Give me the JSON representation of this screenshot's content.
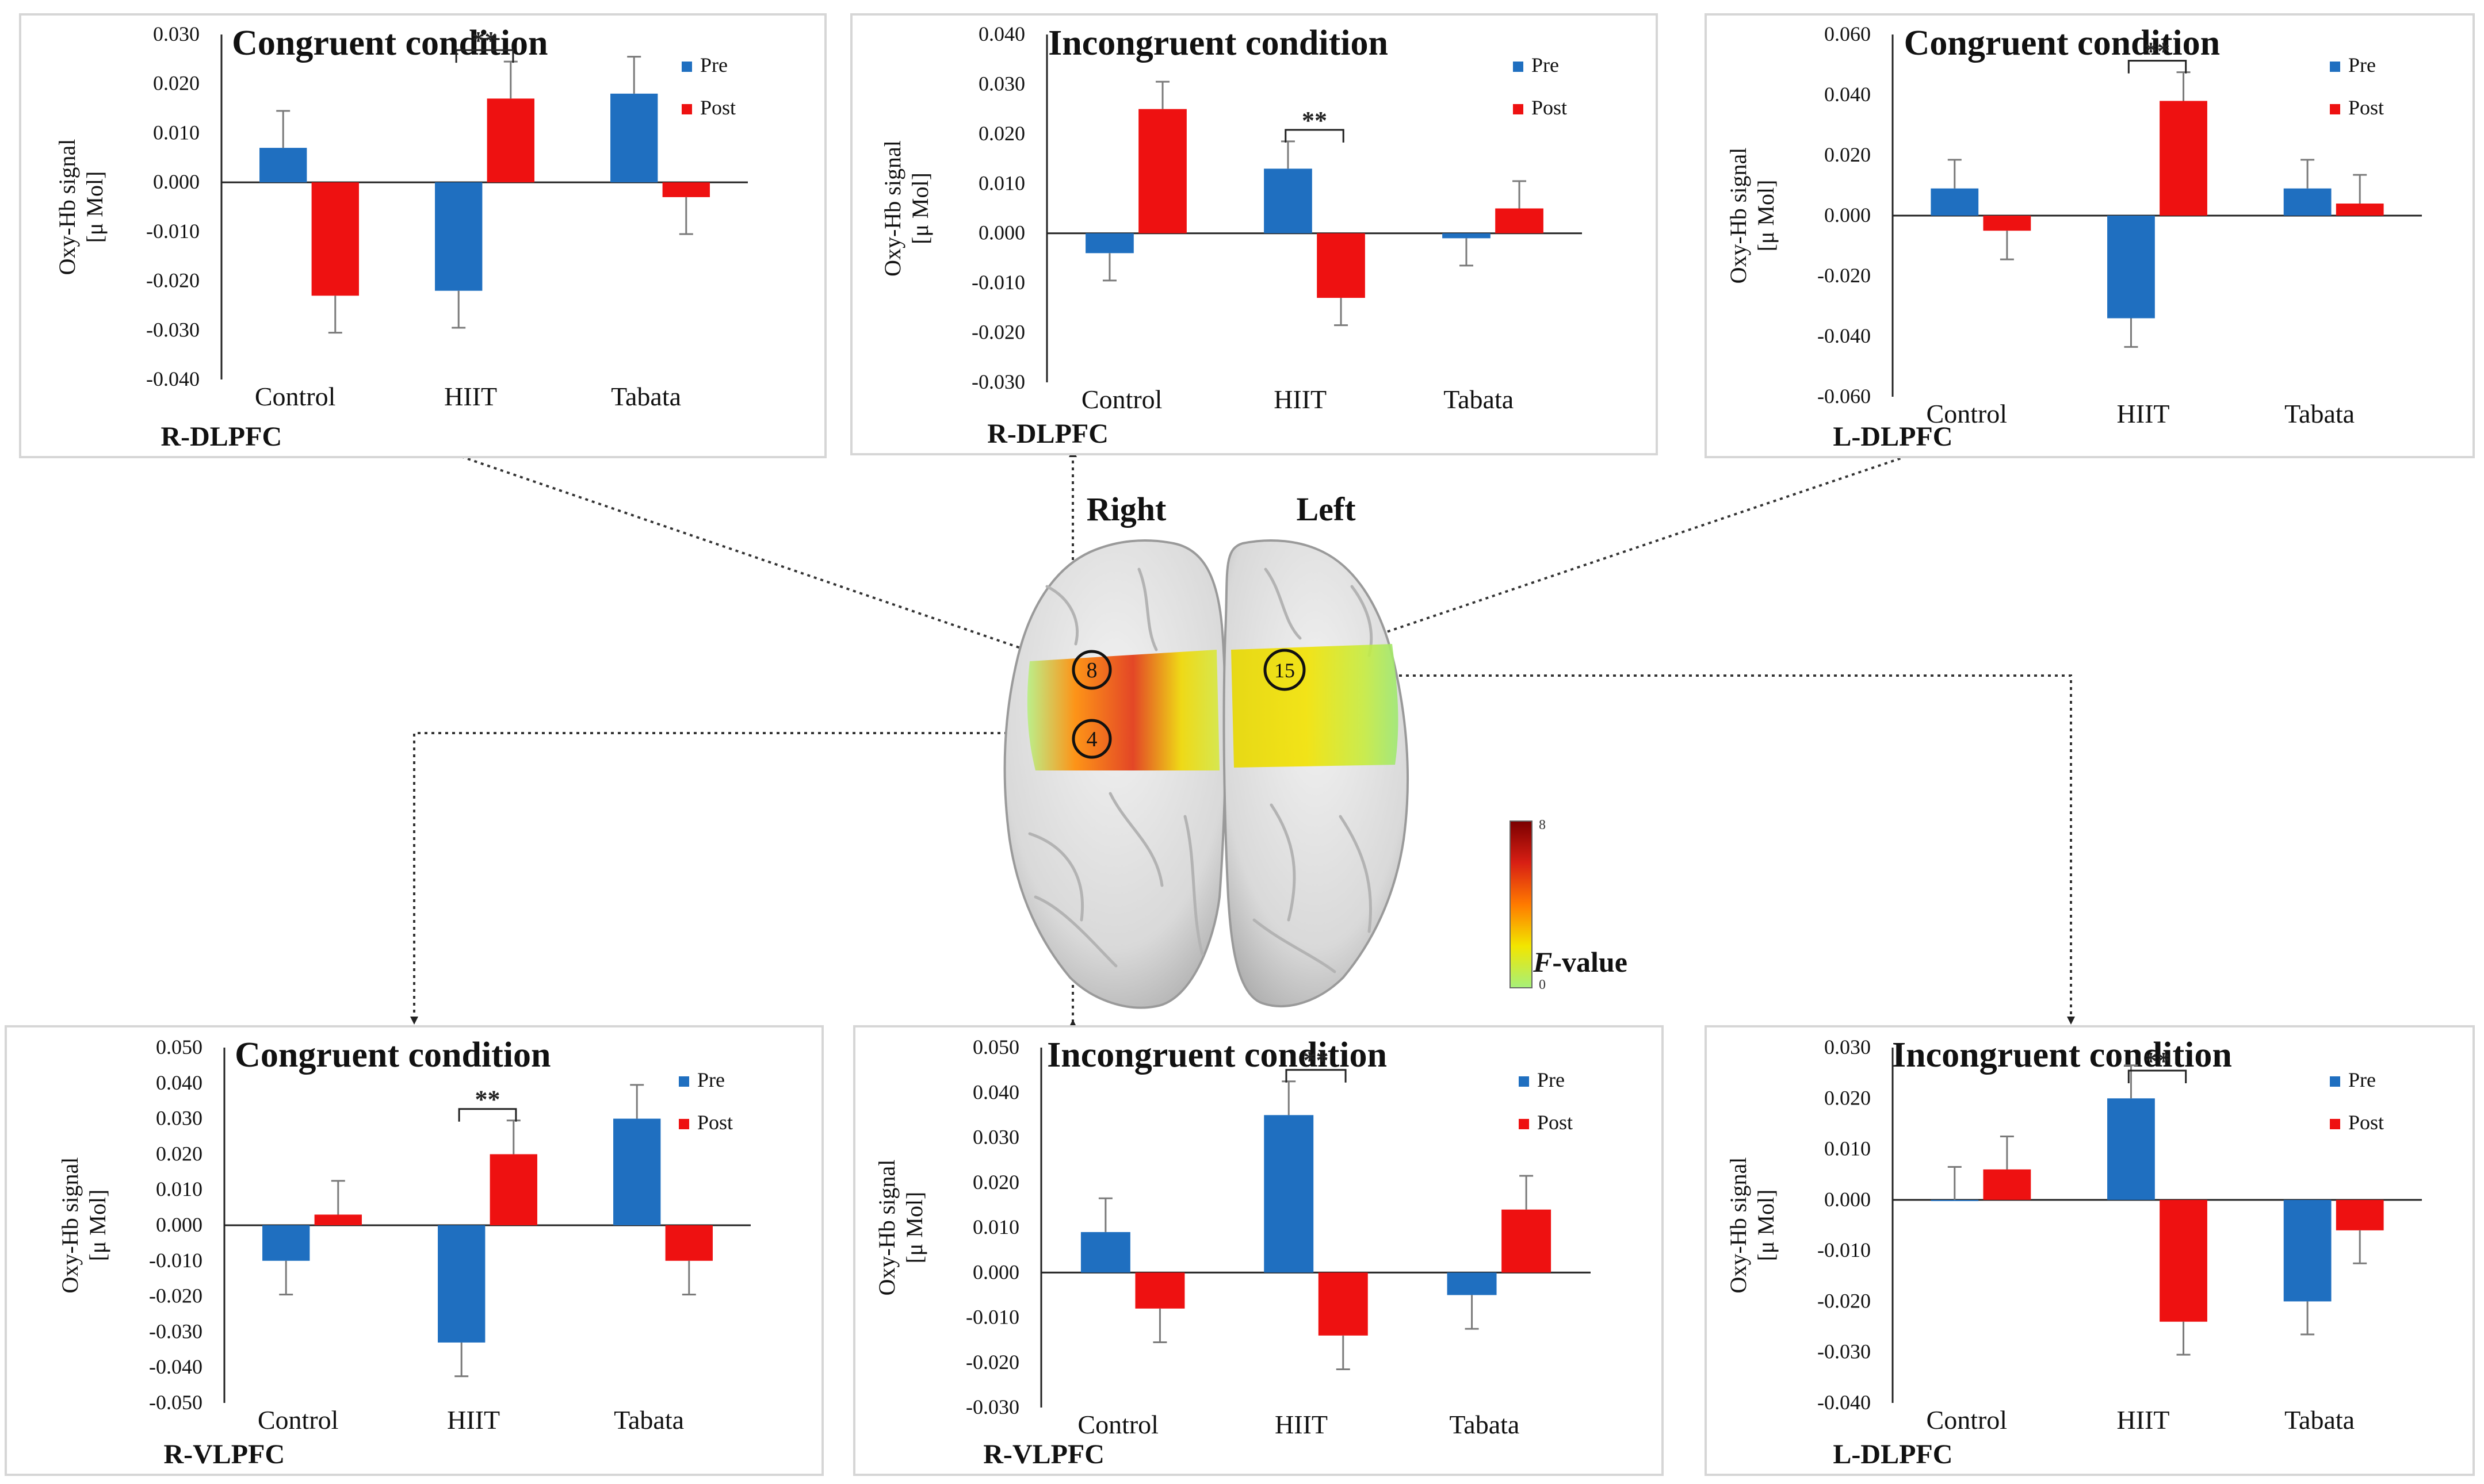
{
  "panels": [
    {
      "id": "tl",
      "title": "Congruent condition",
      "region": "R-DLPFC",
      "ylabel_line1": "Oxy-Hb signal",
      "ylabel_line2": "[μ Mol]",
      "ticks": [
        "0.030",
        "0.020",
        "0.010",
        "0.000",
        "-0.010",
        "-0.020",
        "-0.030",
        "-0.040"
      ],
      "legend": {
        "pre": "Pre",
        "post": "Post"
      },
      "sig_label": "**",
      "chart_data": {
        "type": "bar",
        "categories": [
          "Control",
          "HIIT",
          "Tabata"
        ],
        "series": [
          {
            "name": "Pre",
            "values": [
              0.007,
              -0.022,
              0.018
            ],
            "errors": [
              0.0075,
              0.0075,
              0.0075
            ]
          },
          {
            "name": "Post",
            "values": [
              -0.023,
              0.017,
              -0.003
            ],
            "errors": [
              0.0075,
              0.0075,
              0.0075
            ]
          }
        ],
        "ylim": [
          -0.04,
          0.03
        ],
        "significance": {
          "category": "HIIT",
          "label": "**"
        }
      }
    },
    {
      "id": "tm",
      "title": "Incongruent condition",
      "region": "R-DLPFC",
      "ylabel_line1": "Oxy-Hb signal",
      "ylabel_line2": "[μ Mol]",
      "ticks": [
        "0.040",
        "0.030",
        "0.020",
        "0.010",
        "0.000",
        "-0.010",
        "-0.020",
        "-0.030"
      ],
      "legend": {
        "pre": "Pre",
        "post": "Post"
      },
      "sig_label": "**",
      "chart_data": {
        "type": "bar",
        "categories": [
          "Control",
          "HIIT",
          "Tabata"
        ],
        "series": [
          {
            "name": "Pre",
            "values": [
              -0.004,
              0.013,
              -0.001
            ],
            "errors": [
              0.0055,
              0.0055,
              0.0055
            ]
          },
          {
            "name": "Post",
            "values": [
              0.025,
              -0.013,
              0.005
            ],
            "errors": [
              0.0055,
              0.0055,
              0.0055
            ]
          }
        ],
        "ylim": [
          -0.03,
          0.04
        ],
        "significance": {
          "category": "HIIT",
          "label": "**"
        }
      }
    },
    {
      "id": "tr",
      "title": "Congruent condition",
      "region": "L-DLPFC",
      "ylabel_line1": "Oxy-Hb signal",
      "ylabel_line2": "[μ Mol]",
      "ticks": [
        "0.060",
        "0.040",
        "0.020",
        "0.000",
        "-0.020",
        "-0.040",
        "-0.060"
      ],
      "legend": {
        "pre": "Pre",
        "post": "Post"
      },
      "sig_label": "**",
      "chart_data": {
        "type": "bar",
        "categories": [
          "Control",
          "HIIT",
          "Tabata"
        ],
        "series": [
          {
            "name": "Pre",
            "values": [
              0.009,
              -0.034,
              0.009
            ],
            "errors": [
              0.0095,
              0.0095,
              0.0095
            ]
          },
          {
            "name": "Post",
            "values": [
              -0.005,
              0.038,
              0.004
            ],
            "errors": [
              0.0095,
              0.0095,
              0.0095
            ]
          }
        ],
        "ylim": [
          -0.06,
          0.06
        ],
        "significance": {
          "category": "HIIT",
          "label": "**"
        }
      }
    },
    {
      "id": "bl",
      "title": "Congruent condition",
      "region": "R-VLPFC",
      "ylabel_line1": "Oxy-Hb signal",
      "ylabel_line2": "[μ Mol]",
      "ticks": [
        "0.050",
        "0.040",
        "0.030",
        "0.020",
        "0.010",
        "0.000",
        "-0.010",
        "-0.020",
        "-0.030",
        "-0.040",
        "-0.050"
      ],
      "legend": {
        "pre": "Pre",
        "post": "Post"
      },
      "sig_label": "**",
      "chart_data": {
        "type": "bar",
        "categories": [
          "Control",
          "HIIT",
          "Tabata"
        ],
        "series": [
          {
            "name": "Pre",
            "values": [
              -0.01,
              -0.033,
              0.03
            ],
            "errors": [
              0.0095,
              0.0095,
              0.0095
            ]
          },
          {
            "name": "Post",
            "values": [
              0.003,
              0.02,
              -0.01
            ],
            "errors": [
              0.0095,
              0.0095,
              0.0095
            ]
          }
        ],
        "ylim": [
          -0.05,
          0.05
        ],
        "significance": {
          "category": "HIIT",
          "label": "**"
        }
      }
    },
    {
      "id": "bm",
      "title": "Incongruent condition",
      "region": "R-VLPFC",
      "ylabel_line1": "Oxy-Hb signal",
      "ylabel_line2": "[μ Mol]",
      "ticks": [
        "0.050",
        "0.040",
        "0.030",
        "0.020",
        "0.010",
        "0.000",
        "-0.010",
        "-0.020",
        "-0.030"
      ],
      "legend": {
        "pre": "Pre",
        "post": "Post"
      },
      "sig_label": "**",
      "chart_data": {
        "type": "bar",
        "categories": [
          "Control",
          "HIIT",
          "Tabata"
        ],
        "series": [
          {
            "name": "Pre",
            "values": [
              0.009,
              0.035,
              -0.005
            ],
            "errors": [
              0.0075,
              0.0075,
              0.0075
            ]
          },
          {
            "name": "Post",
            "values": [
              -0.008,
              -0.014,
              0.014
            ],
            "errors": [
              0.0075,
              0.0075,
              0.0075
            ]
          }
        ],
        "ylim": [
          -0.03,
          0.05
        ],
        "significance": {
          "category": "HIIT",
          "label": "**"
        }
      }
    },
    {
      "id": "br",
      "title": "Incongruent condition",
      "region": "L-DLPFC",
      "ylabel_line1": "Oxy-Hb signal",
      "ylabel_line2": "[μ Mol]",
      "ticks": [
        "0.030",
        "0.020",
        "0.010",
        "0.000",
        "-0.010",
        "-0.020",
        "-0.030",
        "-0.040"
      ],
      "legend": {
        "pre": "Pre",
        "post": "Post"
      },
      "sig_label": "**",
      "chart_data": {
        "type": "bar",
        "categories": [
          "Control",
          "HIIT",
          "Tabata"
        ],
        "series": [
          {
            "name": "Pre",
            "values": [
              0.0,
              0.02,
              -0.02
            ],
            "errors": [
              0.0065,
              0.0065,
              0.0065
            ]
          },
          {
            "name": "Post",
            "values": [
              0.006,
              -0.024,
              -0.006
            ],
            "errors": [
              0.0065,
              0.0065,
              0.0065
            ]
          }
        ],
        "ylim": [
          -0.04,
          0.03
        ],
        "significance": {
          "category": "HIIT",
          "label": "**"
        }
      }
    }
  ],
  "brain": {
    "right_label": "Right",
    "left_label": "Left",
    "channels": [
      "8",
      "4",
      "15"
    ],
    "colorbar_max": "8",
    "colorbar_min": "0",
    "colorbar_f": "F",
    "colorbar_value": "-value"
  },
  "colors": {
    "pre": "#1f6fc0",
    "post": "#ee1111",
    "error": "#7a7a7a",
    "axis": "#222222",
    "frame": "#d6d6d6"
  }
}
